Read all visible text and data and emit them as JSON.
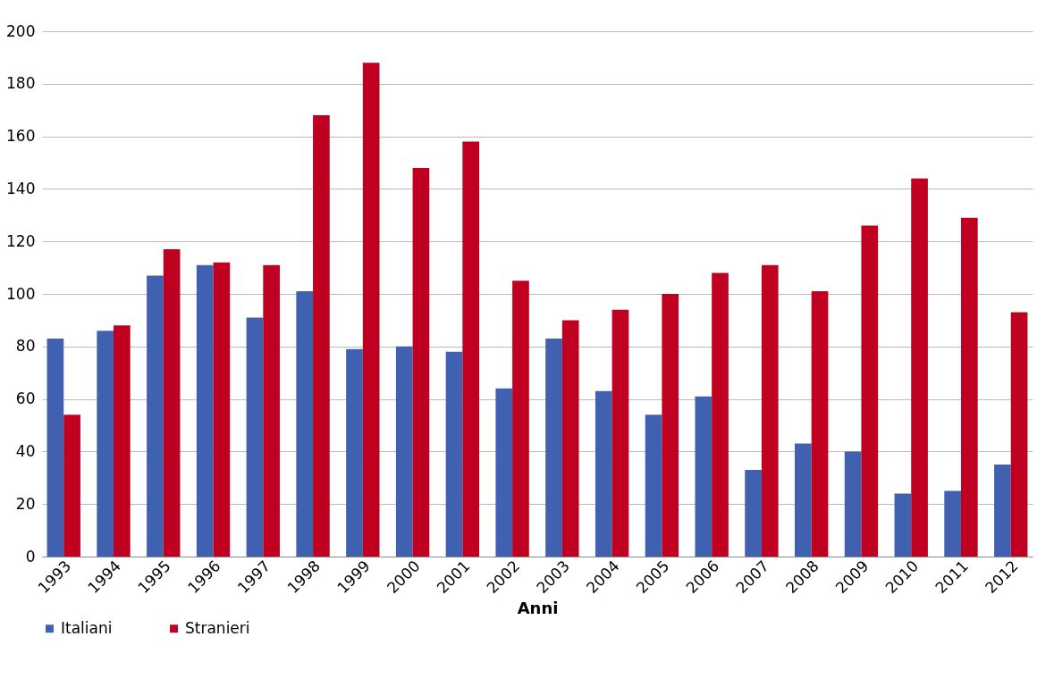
{
  "chart_data": {
    "type": "bar",
    "xlabel": "Anni",
    "categories": [
      "1993",
      "1994",
      "1995",
      "1996",
      "1997",
      "1998",
      "1999",
      "2000",
      "2001",
      "2002",
      "2003",
      "2004",
      "2005",
      "2006",
      "2007",
      "2008",
      "2009",
      "2010",
      "2011",
      "2012"
    ],
    "series": [
      {
        "name": "Italiani",
        "color": "#4060b0",
        "values": [
          83,
          86,
          107,
          111,
          91,
          101,
          79,
          80,
          78,
          64,
          83,
          63,
          54,
          61,
          33,
          43,
          40,
          24,
          25,
          35
        ]
      },
      {
        "name": "Stranieri",
        "color": "#c00020",
        "values": [
          54,
          88,
          117,
          112,
          111,
          168,
          188,
          148,
          158,
          105,
          90,
          94,
          100,
          108,
          111,
          101,
          126,
          144,
          129,
          93
        ]
      }
    ],
    "ylim": [
      0,
      200
    ],
    "yticks": [
      0,
      20,
      40,
      60,
      80,
      100,
      120,
      140,
      160,
      180,
      200
    ],
    "grid": "y",
    "legend": "bottom"
  }
}
